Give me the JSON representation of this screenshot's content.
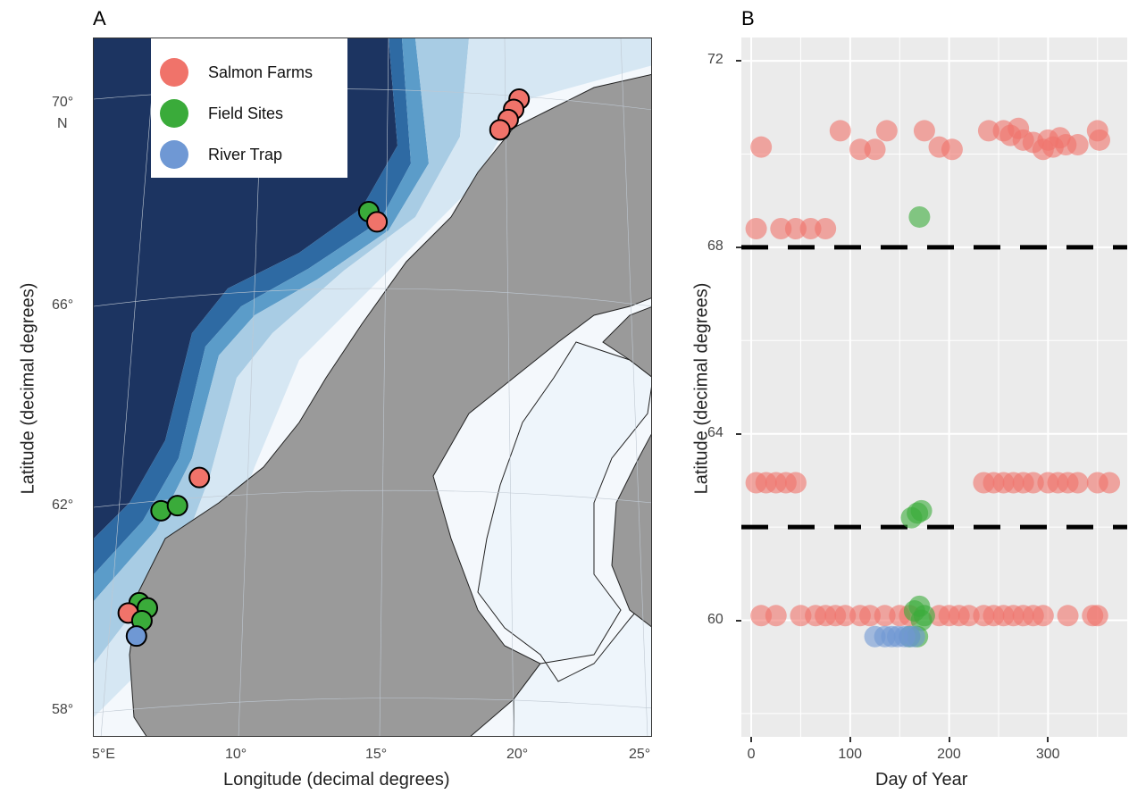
{
  "panels": {
    "a": "A",
    "b": "B"
  },
  "map": {
    "x_title": "Longitude (decimal degrees)",
    "y_title": "Latitude (decimal degrees)",
    "lon_ticks": [
      "5°E",
      "10°",
      "15°",
      "20°",
      "25°"
    ],
    "lat_ticks": [
      "58°",
      "62°",
      "66°",
      "70°"
    ],
    "lat_top_suffix": "N",
    "colors": {
      "deep": "#1c3461",
      "mid_deep": "#2e6aa3",
      "mid": "#5b9cc9",
      "shelf": "#a8cce4",
      "shallow": "#d6e7f3",
      "coast": "#eef5fb",
      "land": "#9a9a9a"
    },
    "legend": [
      {
        "label": "Salmon Farms",
        "color": "#f0736a"
      },
      {
        "label": "Field Sites",
        "color": "#3aab3a"
      },
      {
        "label": "River Trap",
        "color": "#6f98d4"
      }
    ],
    "markers": [
      {
        "type": "farm",
        "lon": 20.3,
        "lat": 70.0
      },
      {
        "type": "farm",
        "lon": 20.1,
        "lat": 69.8
      },
      {
        "type": "farm",
        "lon": 19.9,
        "lat": 69.6
      },
      {
        "type": "farm",
        "lon": 19.6,
        "lat": 69.4
      },
      {
        "type": "field",
        "lon": 14.8,
        "lat": 67.8
      },
      {
        "type": "farm",
        "lon": 15.1,
        "lat": 67.6
      },
      {
        "type": "farm",
        "lon": 8.6,
        "lat": 62.6
      },
      {
        "type": "field",
        "lon": 7.2,
        "lat": 61.95
      },
      {
        "type": "field",
        "lon": 7.8,
        "lat": 62.05
      },
      {
        "type": "field",
        "lon": 6.4,
        "lat": 60.15
      },
      {
        "type": "field",
        "lon": 6.7,
        "lat": 60.05
      },
      {
        "type": "farm",
        "lon": 6.0,
        "lat": 59.95
      },
      {
        "type": "field",
        "lon": 6.5,
        "lat": 59.8
      },
      {
        "type": "river",
        "lon": 6.3,
        "lat": 59.5
      }
    ]
  },
  "chart_data": {
    "type": "scatter",
    "xlabel": "Day of Year",
    "ylabel": "Latitude (decimal degrees)",
    "xlim": [
      -10,
      380
    ],
    "ylim": [
      57.5,
      72.5
    ],
    "x_ticks": [
      0,
      100,
      200,
      300
    ],
    "y_ticks": [
      60,
      64,
      68,
      72
    ],
    "reference_lines_lat": [
      62,
      68
    ],
    "series": [
      {
        "name": "Salmon Farms",
        "color": "#f0736a",
        "points": [
          [
            10,
            70.15
          ],
          [
            90,
            70.5
          ],
          [
            110,
            70.1
          ],
          [
            125,
            70.1
          ],
          [
            137,
            70.5
          ],
          [
            175,
            70.5
          ],
          [
            190,
            70.15
          ],
          [
            203,
            70.1
          ],
          [
            240,
            70.5
          ],
          [
            255,
            70.5
          ],
          [
            262,
            70.4
          ],
          [
            270,
            70.55
          ],
          [
            275,
            70.3
          ],
          [
            285,
            70.25
          ],
          [
            295,
            70.1
          ],
          [
            300,
            70.3
          ],
          [
            305,
            70.15
          ],
          [
            312,
            70.35
          ],
          [
            318,
            70.2
          ],
          [
            330,
            70.2
          ],
          [
            350,
            70.5
          ],
          [
            352,
            70.3
          ],
          [
            5,
            68.4
          ],
          [
            30,
            68.4
          ],
          [
            45,
            68.4
          ],
          [
            60,
            68.4
          ],
          [
            75,
            68.4
          ],
          [
            5,
            62.95
          ],
          [
            15,
            62.95
          ],
          [
            25,
            62.95
          ],
          [
            35,
            62.95
          ],
          [
            45,
            62.95
          ],
          [
            235,
            62.95
          ],
          [
            245,
            62.95
          ],
          [
            255,
            62.95
          ],
          [
            265,
            62.95
          ],
          [
            275,
            62.95
          ],
          [
            285,
            62.95
          ],
          [
            300,
            62.95
          ],
          [
            310,
            62.95
          ],
          [
            320,
            62.95
          ],
          [
            330,
            62.95
          ],
          [
            350,
            62.95
          ],
          [
            362,
            62.95
          ],
          [
            10,
            60.1
          ],
          [
            25,
            60.1
          ],
          [
            50,
            60.1
          ],
          [
            65,
            60.1
          ],
          [
            75,
            60.1
          ],
          [
            85,
            60.1
          ],
          [
            95,
            60.1
          ],
          [
            110,
            60.1
          ],
          [
            120,
            60.1
          ],
          [
            135,
            60.1
          ],
          [
            150,
            60.1
          ],
          [
            160,
            60.1
          ],
          [
            190,
            60.1
          ],
          [
            200,
            60.1
          ],
          [
            210,
            60.1
          ],
          [
            220,
            60.1
          ],
          [
            235,
            60.1
          ],
          [
            245,
            60.1
          ],
          [
            255,
            60.1
          ],
          [
            265,
            60.1
          ],
          [
            275,
            60.1
          ],
          [
            285,
            60.1
          ],
          [
            295,
            60.1
          ],
          [
            320,
            60.1
          ],
          [
            345,
            60.1
          ],
          [
            350,
            60.1
          ]
        ]
      },
      {
        "name": "Field Sites",
        "color": "#3aab3a",
        "points": [
          [
            170,
            68.65
          ],
          [
            162,
            62.2
          ],
          [
            168,
            62.3
          ],
          [
            172,
            62.35
          ],
          [
            165,
            60.2
          ],
          [
            170,
            60.3
          ],
          [
            172,
            60.0
          ],
          [
            175,
            60.1
          ],
          [
            168,
            59.65
          ],
          [
            160,
            59.65
          ]
        ]
      },
      {
        "name": "River Trap",
        "color": "#6f98d4",
        "points": [
          [
            125,
            59.65
          ],
          [
            135,
            59.65
          ],
          [
            142,
            59.65
          ],
          [
            148,
            59.65
          ],
          [
            155,
            59.65
          ],
          [
            160,
            59.65
          ],
          [
            165,
            59.65
          ]
        ]
      }
    ]
  }
}
